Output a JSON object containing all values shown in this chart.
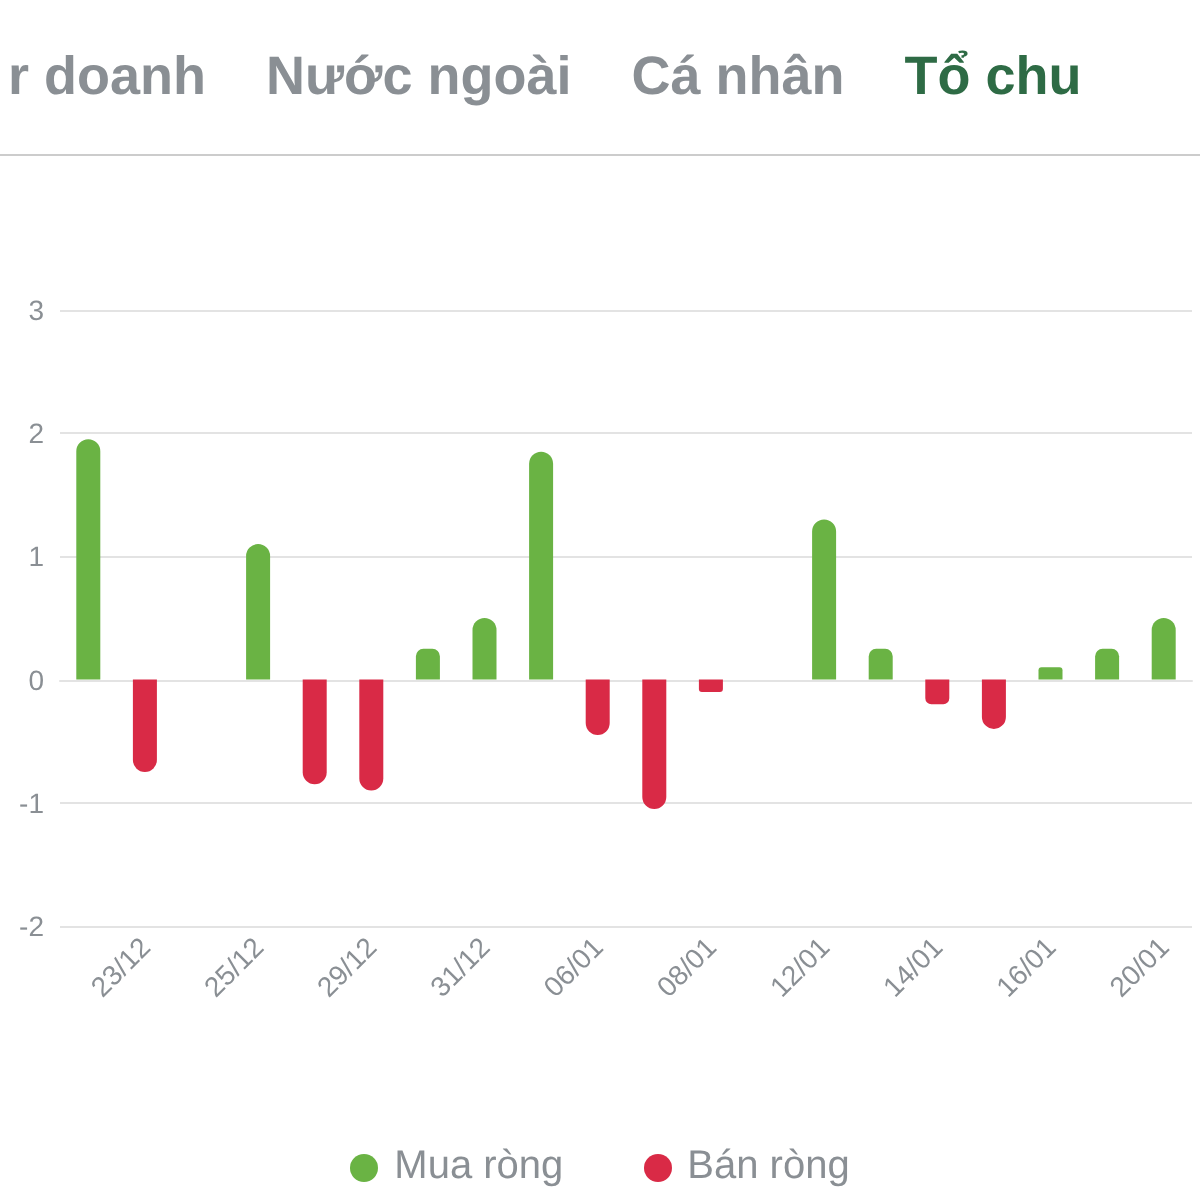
{
  "chart_data": {
    "type": "bar",
    "stacked": true,
    "annotations": [
      "r doanh",
      "Nước ngoài",
      "Cá nhân",
      "Tổ chu"
    ],
    "categories": [
      null,
      "23/12",
      null,
      "25/12",
      null,
      "29/12",
      null,
      "31/12",
      null,
      "06/01",
      null,
      "08/01",
      null,
      "12/01",
      null,
      "14/01",
      null,
      "16/01",
      null,
      "20/01"
    ],
    "series": [
      {
        "name": "Mua ròng",
        "color": "#6ab344",
        "values": [
          1.95,
          null,
          null,
          1.1,
          null,
          null,
          0.25,
          0.5,
          1.85,
          null,
          null,
          null,
          null,
          1.3,
          0.25,
          null,
          null,
          0.1,
          0.25,
          0.5
        ]
      },
      {
        "name": "Bán ròng",
        "color": "#d92a46",
        "values": [
          null,
          -0.75,
          null,
          null,
          -0.85,
          -0.9,
          null,
          null,
          null,
          -0.45,
          -1.05,
          -0.1,
          null,
          null,
          null,
          -0.2,
          -0.4,
          null,
          null,
          null
        ]
      }
    ],
    "ylim": [
      -2,
      3
    ],
    "yticks": [
      -2,
      -1,
      0,
      1,
      2,
      3
    ],
    "grid": "y",
    "legend": "bottom"
  }
}
